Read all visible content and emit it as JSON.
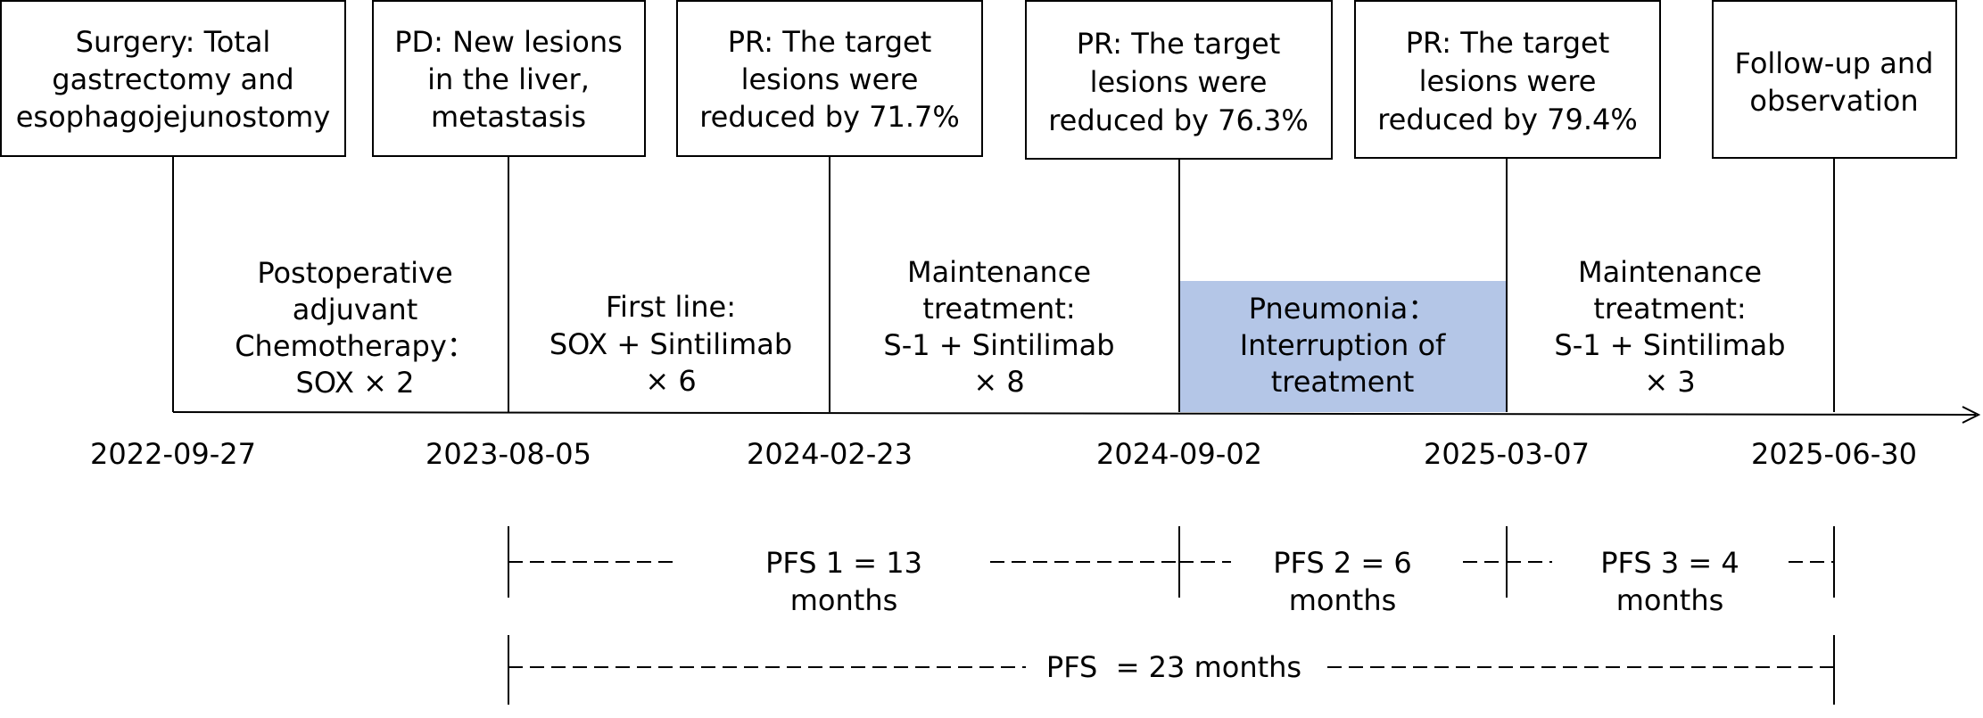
{
  "events": [
    {
      "id": "surgery",
      "lines": [
        "Surgery: Total",
        "gastrectomy and",
        "esophagojejunostomy"
      ]
    },
    {
      "id": "pd",
      "lines": [
        "PD: New lesions",
        "in the liver,",
        "metastasis"
      ]
    },
    {
      "id": "pr1",
      "lines": [
        "PR: The target",
        "lesions were",
        "reduced by 71.7%"
      ]
    },
    {
      "id": "pr2",
      "lines": [
        "PR: The target",
        "lesions were",
        "reduced by 76.3%"
      ]
    },
    {
      "id": "pr3",
      "lines": [
        "PR: The target",
        "lesions were",
        "reduced by 79.4%"
      ]
    },
    {
      "id": "followup",
      "lines": [
        "Follow-up and",
        "observation"
      ]
    }
  ],
  "treatments": [
    {
      "id": "adjuvant",
      "lines": [
        "Postoperative",
        "adjuvant",
        "Chemotherapy：",
        "SOX × 2"
      ]
    },
    {
      "id": "first-line",
      "lines": [
        "First line:",
        "SOX + Sintilimab",
        "× 6"
      ]
    },
    {
      "id": "maintenance-1",
      "lines": [
        "Maintenance",
        "treatment:",
        "S-1 + Sintilimab",
        "× 8"
      ]
    },
    {
      "id": "pneumonia",
      "lines": [
        "Pneumonia：",
        "Interruption of",
        "treatment"
      ]
    },
    {
      "id": "maintenance-2",
      "lines": [
        "Maintenance",
        "treatment:",
        "S-1 + Sintilimab",
        "× 3"
      ]
    }
  ],
  "dates": [
    "2022-09-27",
    "2023-08-05",
    "2024-02-23",
    "2024-09-02",
    "2025-03-07",
    "2025-06-30"
  ],
  "pfs": [
    {
      "id": "pfs1",
      "lines": [
        "PFS 1 = 13",
        "months"
      ]
    },
    {
      "id": "pfs2",
      "lines": [
        "PFS 2 = 6",
        "months"
      ]
    },
    {
      "id": "pfs3",
      "lines": [
        "PFS 3 = 4",
        "months"
      ]
    }
  ],
  "pfs_total": "PFS  = 23 months",
  "colors": {
    "pneumonia_fill": "#b4c6e7",
    "line": "#000000"
  }
}
